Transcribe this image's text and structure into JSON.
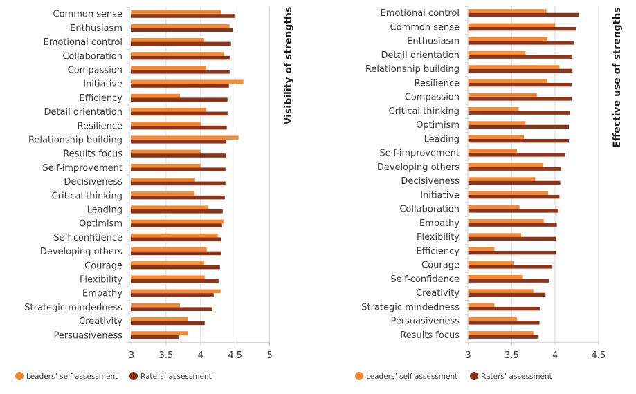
{
  "colors": {
    "self": "#F58A33",
    "raters": "#8B3419",
    "grid": "#e2e2e2",
    "axis": "#d0d0d0"
  },
  "chart_data": [
    {
      "type": "bar",
      "orientation": "horizontal",
      "title": "Visibility of strengths",
      "xlabel": "",
      "ylabel": "",
      "xlim": [
        3,
        5
      ],
      "xticks": [
        3,
        3.5,
        4,
        4.5,
        5
      ],
      "xtick_labels": [
        "3",
        "3.5",
        "4",
        "4.5",
        "5"
      ],
      "grid": true,
      "legend_position": "bottom-left",
      "categories": [
        "Common sense",
        "Enthusiasm",
        "Emotional control",
        "Collaboration",
        "Compassion",
        "Initiative",
        "Efficiency",
        "Detail orientation",
        "Resilience",
        "Relationship building",
        "Results focus",
        "Self-improvement",
        "Decisiveness",
        "Critical thinking",
        "Leading",
        "Optimism",
        "Self-confidence",
        "Developing others",
        "Courage",
        "Flexibility",
        "Empathy",
        "Strategic mindedness",
        "Creativity",
        "Persuasiveness"
      ],
      "series": [
        {
          "name": "Leaders’ self assessment",
          "key": "self",
          "values": [
            4.3,
            4.42,
            4.05,
            4.34,
            4.08,
            4.62,
            3.7,
            4.08,
            4.0,
            4.55,
            4.0,
            4.0,
            3.92,
            3.91,
            4.11,
            4.34,
            4.25,
            4.09,
            4.05,
            4.06,
            4.29,
            3.7,
            3.82,
            3.82
          ]
        },
        {
          "name": "Raters’ assessment",
          "key": "raters",
          "values": [
            4.49,
            4.47,
            4.44,
            4.43,
            4.42,
            4.41,
            4.39,
            4.39,
            4.38,
            4.37,
            4.37,
            4.36,
            4.36,
            4.35,
            4.32,
            4.31,
            4.3,
            4.3,
            4.28,
            4.26,
            4.19,
            4.17,
            4.06,
            3.68
          ]
        }
      ]
    },
    {
      "type": "bar",
      "orientation": "horizontal",
      "title": "Effective use of strengths",
      "xlabel": "",
      "ylabel": "",
      "xlim": [
        3,
        4.5
      ],
      "xticks": [
        3,
        3.5,
        4,
        4.5
      ],
      "xtick_labels": [
        "3",
        "3.5",
        "4",
        "4.5"
      ],
      "grid": true,
      "legend_position": "bottom-left",
      "categories": [
        "Emotional control",
        "Common sense",
        "Enthusiasm",
        "Detail orientation",
        "Relationship building",
        "Resilience",
        "Compassion",
        "Critical thinking",
        "Optimism",
        "Leading",
        "Self-improvement",
        "Developing others",
        "Decisiveness",
        "Initiative",
        "Collaboration",
        "Empathy",
        "Flexibility",
        "Efficiency",
        "Courage",
        "Self-confidence",
        "Creativity",
        "Strategic mindedness",
        "Persuasiveness",
        "Results focus"
      ],
      "series": [
        {
          "name": "Leaders’ self assessment",
          "key": "self",
          "values": [
            3.9,
            4.0,
            3.91,
            3.66,
            4.05,
            3.91,
            3.79,
            3.58,
            3.66,
            3.64,
            3.56,
            3.86,
            3.77,
            3.92,
            3.59,
            3.87,
            3.61,
            3.3,
            3.52,
            3.62,
            3.75,
            3.3,
            3.56,
            3.75
          ]
        },
        {
          "name": "Raters’ assessment",
          "key": "raters",
          "values": [
            4.27,
            4.24,
            4.22,
            4.2,
            4.2,
            4.19,
            4.19,
            4.17,
            4.16,
            4.16,
            4.12,
            4.07,
            4.06,
            4.05,
            4.04,
            4.02,
            4.01,
            4.01,
            3.97,
            3.93,
            3.89,
            3.83,
            3.82,
            3.81
          ]
        }
      ]
    }
  ],
  "legend": {
    "self_label": "Leaders’ self assessment",
    "raters_label": "Raters’ assessment"
  }
}
